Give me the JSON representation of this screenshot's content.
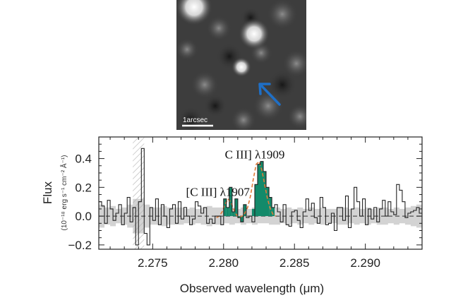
{
  "image_panel": {
    "scalebar_label": "1arcsec",
    "arrow_color": "#1f6fc6"
  },
  "chart_data": {
    "type": "line",
    "xlabel": "Observed wavelength (μm)",
    "ylabel": "Flux",
    "ylabel_units": "(10⁻¹⁸ erg s⁻¹ cm⁻² Å⁻¹)",
    "xlim": [
      2.2712,
      2.294
    ],
    "ylim": [
      -0.23,
      0.55
    ],
    "xticks": [
      2.275,
      2.28,
      2.285,
      2.29
    ],
    "xtick_labels": [
      "2.275",
      "2.280",
      "2.285",
      "2.290"
    ],
    "yticks": [
      -0.2,
      0.0,
      0.2,
      0.4
    ],
    "ytick_labels": [
      "−0.2",
      "0.0",
      "0.2",
      "0.4"
    ],
    "annotations": [
      {
        "text": "[C III] λ1907",
        "x": 2.2796,
        "y": 0.14
      },
      {
        "text": "C III] λ1909",
        "x": 2.2822,
        "y": 0.4
      }
    ],
    "masked_region": [
      2.2736,
      2.2744
    ],
    "colors": {
      "spectrum": "#222222",
      "noise": "#d3d3d3",
      "emission_fill": "#138a6a",
      "fit": "#e07b39",
      "hatch": "#bbbbbb"
    },
    "bin_width": 0.0002,
    "spectrum": {
      "x": [
        2.2712,
        2.2714,
        2.2716,
        2.2718,
        2.272,
        2.2722,
        2.2724,
        2.2726,
        2.2728,
        2.273,
        2.2732,
        2.2734,
        2.2736,
        2.2738,
        2.274,
        2.2742,
        2.2744,
        2.2746,
        2.2748,
        2.275,
        2.2752,
        2.2754,
        2.2756,
        2.2758,
        2.276,
        2.2762,
        2.2764,
        2.2766,
        2.2768,
        2.277,
        2.2772,
        2.2774,
        2.2776,
        2.2778,
        2.278,
        2.2782,
        2.2784,
        2.2786,
        2.2788,
        2.279,
        2.2792,
        2.2794,
        2.2796,
        2.2798,
        2.28,
        2.2802,
        2.2804,
        2.2806,
        2.2808,
        2.281,
        2.2812,
        2.2814,
        2.2816,
        2.2818,
        2.282,
        2.2822,
        2.2824,
        2.2826,
        2.2828,
        2.283,
        2.2832,
        2.2834,
        2.2836,
        2.2838,
        2.284,
        2.2842,
        2.2844,
        2.2846,
        2.2848,
        2.285,
        2.2852,
        2.2854,
        2.2856,
        2.2858,
        2.286,
        2.2862,
        2.2864,
        2.2866,
        2.2868,
        2.287,
        2.2872,
        2.2874,
        2.2876,
        2.2878,
        2.288,
        2.2882,
        2.2884,
        2.2886,
        2.2888,
        2.289,
        2.2892,
        2.2894,
        2.2896,
        2.2898,
        2.29,
        2.2902,
        2.2904,
        2.2906,
        2.2908,
        2.291,
        2.2912,
        2.2914,
        2.2916,
        2.2918,
        2.292,
        2.2922,
        2.2924,
        2.2926,
        2.2928,
        2.293,
        2.2932,
        2.2934,
        2.2936,
        2.2938
      ],
      "y": [
        0.1,
        0.07,
        -0.05,
        0.11,
        0.05,
        -0.03,
        0.02,
        0.08,
        -0.06,
        0.02,
        0.13,
        -0.04,
        0.06,
        -0.2,
        0.1,
        0.47,
        -0.12,
        -0.2,
        0.06,
        -0.03,
        0.12,
        -0.06,
        0.08,
        0.0,
        -0.08,
        0.05,
        0.08,
        -0.05,
        0.1,
        -0.02,
        0.06,
        0.0,
        -0.06,
        -0.02,
        0.1,
        0.07,
        0.02,
        0.06,
        -0.05,
        -0.02,
        -0.05,
        0.0,
        0.0,
        -0.06,
        0.12,
        0.06,
        0.2,
        0.03,
        0.12,
        -0.01,
        -0.04,
        0.08,
        -0.01,
        0.0,
        -0.04,
        0.22,
        0.36,
        0.38,
        0.31,
        0.2,
        0.13,
        0.06,
        0.08,
        0.03,
        -0.04,
        0.08,
        -0.06,
        -0.07,
        0.03,
        0.04,
        -0.03,
        -0.08,
        0.03,
        0.12,
        0.04,
        0.09,
        -0.01,
        -0.05,
        0.13,
        0.06,
        -0.06,
        -0.05,
        0.02,
        -0.1,
        0.06,
        0.06,
        -0.03,
        0.14,
        -0.08,
        0.05,
        0.2,
        0.1,
        0.0,
        0.12,
        -0.06,
        0.05,
        -0.02,
        0.06,
        -0.04,
        0.05,
        0.11,
        0.0,
        0.1,
        0.03,
        0.01,
        0.22,
        0.18,
        0.1,
        -0.01,
        0.02,
        0.03,
        0.04,
        0.06,
        0.02
      ]
    },
    "noise_band": {
      "x": [
        2.2712,
        2.2716,
        2.272,
        2.2724,
        2.2728,
        2.2732,
        2.2736,
        2.274,
        2.2744,
        2.2748,
        2.2752,
        2.2756,
        2.276,
        2.2764,
        2.2768,
        2.2772,
        2.2776,
        2.278,
        2.2784,
        2.2788,
        2.2792,
        2.2796,
        2.28,
        2.2804,
        2.2808,
        2.2812,
        2.2816,
        2.282,
        2.2824,
        2.2828,
        2.2832,
        2.2836,
        2.284,
        2.2844,
        2.2848,
        2.2852,
        2.2856,
        2.286,
        2.2864,
        2.2868,
        2.2872,
        2.2876,
        2.288,
        2.2884,
        2.2888,
        2.2892,
        2.2896,
        2.29,
        2.2904,
        2.2908,
        2.2912,
        2.2916,
        2.292,
        2.2924,
        2.2928,
        2.2932,
        2.2936,
        2.294
      ],
      "sigma": [
        0.08,
        0.06,
        0.07,
        0.05,
        0.06,
        0.08,
        0.12,
        0.12,
        0.08,
        0.06,
        0.06,
        0.07,
        0.06,
        0.06,
        0.06,
        0.05,
        0.06,
        0.05,
        0.06,
        0.07,
        0.06,
        0.06,
        0.05,
        0.06,
        0.05,
        0.06,
        0.05,
        0.06,
        0.05,
        0.05,
        0.06,
        0.06,
        0.05,
        0.06,
        0.05,
        0.06,
        0.05,
        0.06,
        0.05,
        0.06,
        0.05,
        0.05,
        0.06,
        0.06,
        0.05,
        0.06,
        0.05,
        0.06,
        0.05,
        0.06,
        0.06,
        0.05,
        0.06,
        0.05,
        0.06,
        0.07,
        0.08,
        0.07
      ]
    },
    "emission_fill": {
      "x": [
        2.2794,
        2.2796,
        2.2798,
        2.28,
        2.2802,
        2.2804,
        2.2806,
        2.2808,
        2.281,
        2.2812,
        2.2814,
        2.2816,
        2.2818,
        2.282,
        2.2822,
        2.2824,
        2.2826,
        2.2828,
        2.283,
        2.2832,
        2.2834
      ],
      "y": [
        0.0,
        0.0,
        0.0,
        0.12,
        0.06,
        0.2,
        0.03,
        0.12,
        -0.01,
        -0.04,
        0.08,
        0.0,
        0.0,
        0.05,
        0.22,
        0.36,
        0.38,
        0.31,
        0.2,
        0.13,
        0.06
      ]
    },
    "fit": {
      "x": [
        2.2794,
        2.2796,
        2.2798,
        2.28,
        2.2802,
        2.2804,
        2.2806,
        2.2808,
        2.281,
        2.2812,
        2.2814,
        2.2816,
        2.2818,
        2.282,
        2.2822,
        2.2824,
        2.2826,
        2.2828,
        2.283,
        2.2832,
        2.2834,
        2.2836
      ],
      "y": [
        -0.01,
        0.0,
        0.03,
        0.08,
        0.12,
        0.1,
        0.05,
        0.01,
        -0.01,
        0.0,
        0.02,
        0.06,
        0.14,
        0.26,
        0.36,
        0.38,
        0.32,
        0.22,
        0.12,
        0.05,
        0.01,
        0.0
      ]
    }
  }
}
